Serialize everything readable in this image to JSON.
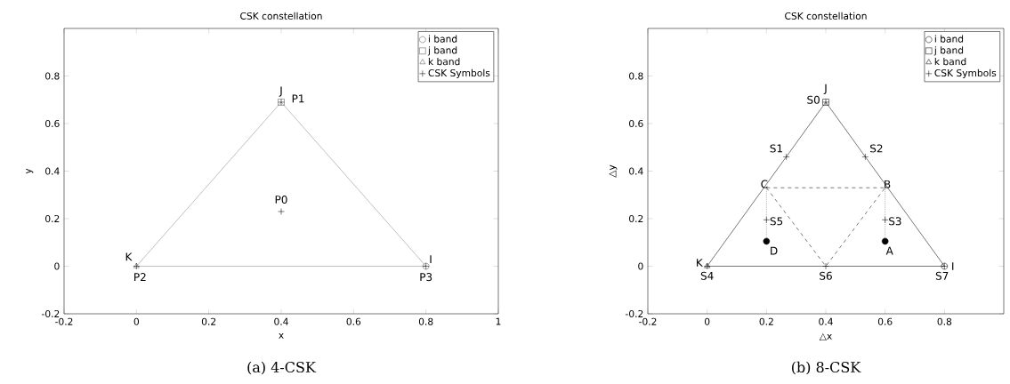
{
  "chart_data": [
    {
      "type": "scatter",
      "title": "CSK constellation",
      "xlabel": "x",
      "ylabel": "y",
      "xlim": [
        -0.2,
        1
      ],
      "ylim": [
        -0.2,
        1
      ],
      "xticks": [
        -0.2,
        0,
        0.2,
        0.4,
        0.6,
        0.8,
        1
      ],
      "yticks": [
        -0.2,
        0,
        0.2,
        0.4,
        0.6,
        0.8
      ],
      "legend": "top right",
      "series": [
        {
          "type": "line",
          "color": "#888888",
          "x": [
            0,
            0.4,
            0.8
          ],
          "values": [
            0,
            0.69,
            0
          ],
          "marker": "none",
          "line_style": "solid"
        },
        {
          "type": "line",
          "color": "#888888",
          "x": [
            0,
            0.8
          ],
          "values": [
            0,
            0
          ],
          "marker": "none",
          "line_style": "solid"
        },
        {
          "name": "i band",
          "color": "#555555",
          "x": [
            0.8
          ],
          "values": [
            0
          ],
          "marker": "circle"
        },
        {
          "name": "j band",
          "color": "#555555",
          "x": [
            0.4
          ],
          "values": [
            0.69
          ],
          "marker": "square"
        },
        {
          "name": "k band",
          "color": "#555555",
          "x": [
            0
          ],
          "values": [
            0
          ],
          "marker": "triangle"
        },
        {
          "name": "CSK Symbols",
          "color": "#000000",
          "x": [
            0.4,
            0.4,
            0,
            0.8
          ],
          "values": [
            0.23,
            0.69,
            0,
            0
          ],
          "marker": "cross"
        }
      ],
      "annotations": [
        {
          "text": "J",
          "x": 0.4,
          "y": 0.69
        },
        {
          "text": "P1",
          "x": 0.4,
          "y": 0.69
        },
        {
          "text": "P0",
          "x": 0.4,
          "y": 0.23
        },
        {
          "text": "K",
          "x": 0,
          "y": 0
        },
        {
          "text": "P2",
          "x": 0,
          "y": 0
        },
        {
          "text": "I",
          "x": 0.8,
          "y": 0
        },
        {
          "text": "P3",
          "x": 0.8,
          "y": 0
        },
        "(a) 4-CSK"
      ]
    },
    {
      "type": "scatter",
      "title": "CSK constellation",
      "xlabel": "△x",
      "ylabel": "△y",
      "xlim": [
        -0.2,
        1
      ],
      "ylim": [
        -0.2,
        1
      ],
      "xticks": [
        -0.2,
        0,
        0.2,
        0.4,
        0.6,
        0.8
      ],
      "yticks": [
        -0.2,
        0,
        0.2,
        0.4,
        0.6,
        0.8
      ],
      "legend": "top right",
      "series": [
        {
          "type": "line",
          "color": "#000000",
          "x": [
            0,
            0.4,
            0.8
          ],
          "values": [
            0,
            0.69,
            0
          ],
          "marker": "none",
          "line_style": "solid"
        },
        {
          "type": "line",
          "color": "#000000",
          "x": [
            0,
            0.8
          ],
          "values": [
            0,
            0
          ],
          "marker": "none",
          "line_style": "solid"
        },
        {
          "type": "line",
          "color": "#000000",
          "x": [
            0.2,
            0.4,
            0.6
          ],
          "values": [
            0.33,
            0,
            0.33
          ],
          "marker": "none",
          "line_style": "dashed"
        },
        {
          "type": "line",
          "color": "#000000",
          "x": [
            0.2,
            0.6
          ],
          "values": [
            0.33,
            0.33
          ],
          "marker": "none",
          "line_style": "dashed"
        },
        {
          "type": "line",
          "color": "#000000",
          "x": [
            0.2,
            0.2
          ],
          "values": [
            0.33,
            0.11
          ],
          "marker": "none",
          "line_style": "dotted"
        },
        {
          "type": "line",
          "color": "#000000",
          "x": [
            0.6,
            0.6
          ],
          "values": [
            0.33,
            0.11
          ],
          "marker": "none",
          "line_style": "dotted"
        },
        {
          "name": "i band",
          "color": "#000000",
          "x": [
            0.8
          ],
          "values": [
            0
          ],
          "marker": "circle"
        },
        {
          "name": "j band",
          "color": "#000000",
          "x": [
            0.4
          ],
          "values": [
            0.69
          ],
          "marker": "square"
        },
        {
          "name": "k band",
          "color": "#000000",
          "x": [
            0
          ],
          "values": [
            0
          ],
          "marker": "triangle"
        },
        {
          "name": "CSK Symbols",
          "color": "#000000",
          "x": [
            0.4,
            0.267,
            0.533,
            0.6,
            0,
            0.2,
            0.4,
            0.8
          ],
          "values": [
            0.69,
            0.46,
            0.46,
            0.195,
            0,
            0.195,
            0,
            0
          ],
          "marker": "cross"
        },
        {
          "color": "#000000",
          "x": [
            0.6,
            0.2
          ],
          "values": [
            0.105,
            0.105
          ],
          "marker": "circle"
        }
      ],
      "annotations": [
        {
          "text": "J",
          "x": 0.4,
          "y": 0.69
        },
        {
          "text": "S0",
          "x": 0.4,
          "y": 0.69
        },
        {
          "text": "S1",
          "x": 0.267,
          "y": 0.46
        },
        {
          "text": "S2",
          "x": 0.533,
          "y": 0.46
        },
        {
          "text": "C",
          "x": 0.2,
          "y": 0.33
        },
        {
          "text": "B",
          "x": 0.6,
          "y": 0.33
        },
        {
          "text": "S5",
          "x": 0.2,
          "y": 0.195
        },
        {
          "text": "S3",
          "x": 0.6,
          "y": 0.195
        },
        {
          "text": "D",
          "x": 0.2,
          "y": 0.105
        },
        {
          "text": "A",
          "x": 0.6,
          "y": 0.105
        },
        {
          "text": "K",
          "x": 0,
          "y": 0
        },
        {
          "text": "S4",
          "x": 0,
          "y": 0
        },
        {
          "text": "S6",
          "x": 0.4,
          "y": 0
        },
        {
          "text": "S7",
          "x": 0.8,
          "y": 0
        },
        {
          "text": "I",
          "x": 0.8,
          "y": 0
        },
        "(b) 8-CSK"
      ]
    }
  ]
}
